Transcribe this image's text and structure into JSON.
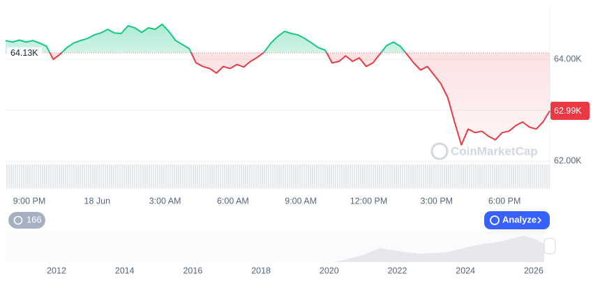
{
  "chart_data": {
    "type": "line",
    "series": [
      {
        "name": "Price",
        "color_up": "#16c784",
        "color_down": "#ea3943",
        "values": [
          64370,
          64340,
          64380,
          64340,
          64370,
          64320,
          64260,
          64000,
          64100,
          64230,
          64320,
          64370,
          64410,
          64480,
          64520,
          64590,
          64520,
          64510,
          64660,
          64620,
          64530,
          64620,
          64590,
          64690,
          64550,
          64370,
          64290,
          64210,
          63930,
          63860,
          63820,
          63730,
          63860,
          63820,
          63900,
          63850,
          63960,
          64040,
          64140,
          64320,
          64450,
          64550,
          64510,
          64480,
          64410,
          64320,
          64230,
          64180,
          63930,
          63960,
          64070,
          63960,
          64030,
          63860,
          63930,
          64100,
          64270,
          64340,
          64260,
          64100,
          63930,
          63790,
          63860,
          63690,
          63520,
          63250,
          62770,
          62320,
          62630,
          62560,
          62590,
          62490,
          62420,
          62560,
          62590,
          62700,
          62770,
          62670,
          62630,
          62770,
          62990
        ],
        "value_labels": {
          "80": "62.99K"
        }
      }
    ],
    "baseline": {
      "value": 64130,
      "label": "64.13K"
    },
    "ylim": [
      61880,
      65030
    ],
    "yticks": [
      {
        "value": 62000,
        "label": "62.00K"
      },
      {
        "value": 63000,
        "label": ""
      },
      {
        "value": 64000,
        "label": "64.00K"
      }
    ],
    "xticks": [
      "9:00 PM",
      "18 Jun",
      "3:00 AM",
      "6:00 AM",
      "9:00 AM",
      "12:00 PM",
      "3:00 PM",
      "6:00 PM"
    ],
    "watermark": "CoinMarketCap",
    "navigator": {
      "xticks": [
        2012,
        2014,
        2016,
        2018,
        2020,
        2022,
        2024,
        2026
      ]
    },
    "buttons": {
      "history": "166",
      "analyze": "Analyze"
    }
  }
}
